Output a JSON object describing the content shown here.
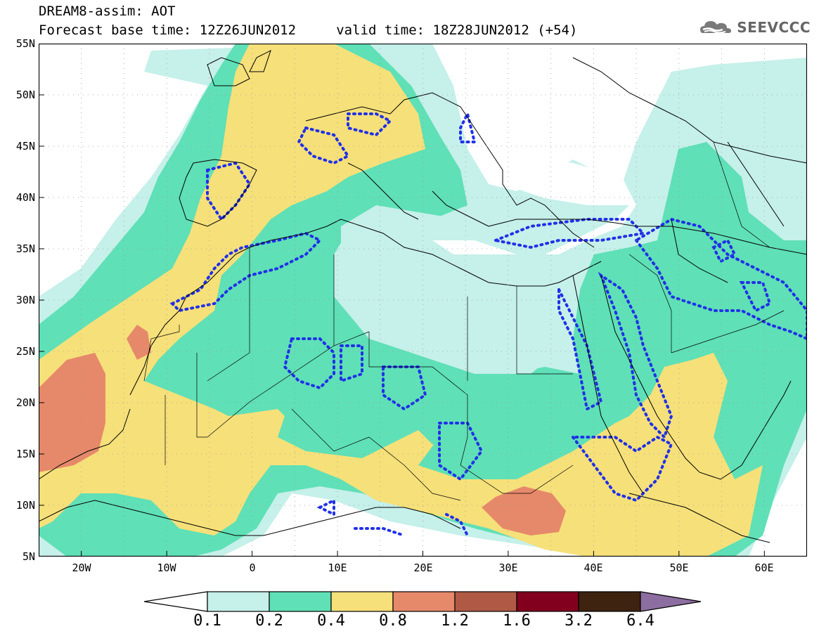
{
  "header": {
    "line1": "DREAM8-assim: AOT",
    "line2": "Forecast base time: 12Z26JUN2012     valid time: 18Z28JUN2012 (+54)",
    "brand_text": "SEEVCCC",
    "brand_icon": "cloud-logo-icon"
  },
  "map": {
    "lat_labels": [
      "55N",
      "50N",
      "45N",
      "40N",
      "35N",
      "30N",
      "25N",
      "20N",
      "15N",
      "10N",
      "5N"
    ],
    "lon_labels": [
      "20W",
      "10W",
      "0",
      "10E",
      "20E",
      "30E",
      "40E",
      "50E",
      "60E"
    ],
    "lat_range": [
      5,
      55
    ],
    "lon_range": [
      -25,
      65
    ],
    "grid": "dotted"
  },
  "legend": {
    "labels": [
      "0.1",
      "0.2",
      "0.4",
      "0.8",
      "1.2",
      "1.6",
      "3.2",
      "6.4"
    ],
    "colors": [
      "#ffffff",
      "#c6f0ea",
      "#5fe0b6",
      "#f6e07a",
      "#e6896a",
      "#b05a45",
      "#82001e",
      "#3d2310",
      "#8c6ea0"
    ]
  },
  "colors": {
    "c01": "#c6f0ea",
    "c02": "#5fe0b6",
    "c04": "#f6e07a",
    "c08": "#e6896a",
    "contour": "#2030e8"
  }
}
